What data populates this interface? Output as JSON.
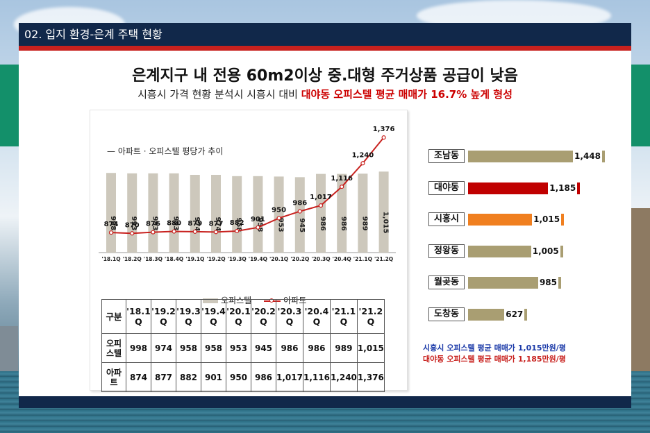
{
  "slide": {
    "title": "02. 입지 환경-은계 주택 현황",
    "headline": "은계지구 내 전용 60m2이상 중.대형 주거상품 공급이 낮음",
    "subline_normal": "시흥시 가격 현황 분석시 시흥시 대비 ",
    "subline_highlight": "대야동 오피스텔 평균 매매가 16.7% 높게 형성"
  },
  "colors": {
    "title_bar": "#11284a",
    "accent_red": "#c8211e",
    "bar_gray": "#cdc8bc",
    "bar_olive": "#a99e72",
    "bar_red": "#c00000",
    "bar_orange": "#f07f1f",
    "note_blue": "#1a39a8"
  },
  "chart_data": [
    {
      "type": "bar+line",
      "title": "아파트 · 오피스텔 평당가 추이",
      "categories": [
        "'18.1Q",
        "'18.2Q",
        "'18.3Q",
        "'18.4Q",
        "'19.1Q",
        "'19.2Q",
        "'19.3Q",
        "'19.4Q",
        "'20.1Q",
        "'20.2Q",
        "'20.3Q",
        "'20.4Q",
        "'21.1Q",
        "'21.2Q"
      ],
      "series": [
        {
          "name": "오피스텔",
          "type": "bar",
          "values": [
            998,
            993,
            993,
            993,
            974,
            974,
            958,
            958,
            953,
            945,
            986,
            986,
            989,
            1015
          ]
        },
        {
          "name": "아파트",
          "type": "line",
          "values": [
            874,
            870,
            876,
            880,
            879,
            877,
            882,
            901,
            950,
            986,
            1017,
            1116,
            1240,
            1376
          ]
        }
      ],
      "legend": "bottom"
    },
    {
      "type": "bar",
      "orientation": "horizontal",
      "categories": [
        "조남동",
        "대야동",
        "시흥시",
        "정왕동",
        "월곶동",
        "도창동"
      ],
      "values": [
        1448,
        1185,
        1015,
        1005,
        985,
        627
      ],
      "value_labels": [
        "1,448",
        "1,185",
        "1,015",
        "1,005",
        "985",
        "627"
      ]
    }
  ],
  "table": {
    "header_first": "구분",
    "headers": [
      "'18.1\nQ",
      "'19.2\nQ",
      "'19.3\nQ",
      "'19.4\nQ",
      "'20.1\nQ",
      "'20.2\nQ",
      "'20.3\nQ",
      "'20.4\nQ",
      "'21.1\nQ",
      "'21.2\nQ"
    ],
    "rows": [
      {
        "label": "오피\n스텔",
        "values": [
          "998",
          "974",
          "958",
          "958",
          "953",
          "945",
          "986",
          "986",
          "989",
          "1,015"
        ]
      },
      {
        "label": "아파\n트",
        "values": [
          "874",
          "877",
          "882",
          "901",
          "950",
          "986",
          "1,017",
          "1,116",
          "1,240",
          "1,376"
        ]
      }
    ]
  },
  "notes": {
    "line1": "시흥시 오피스텔 평균 매매가 1,015만원/평",
    "line2": "대야동 오피스텔 평균 매매가 1,185만원/평"
  }
}
